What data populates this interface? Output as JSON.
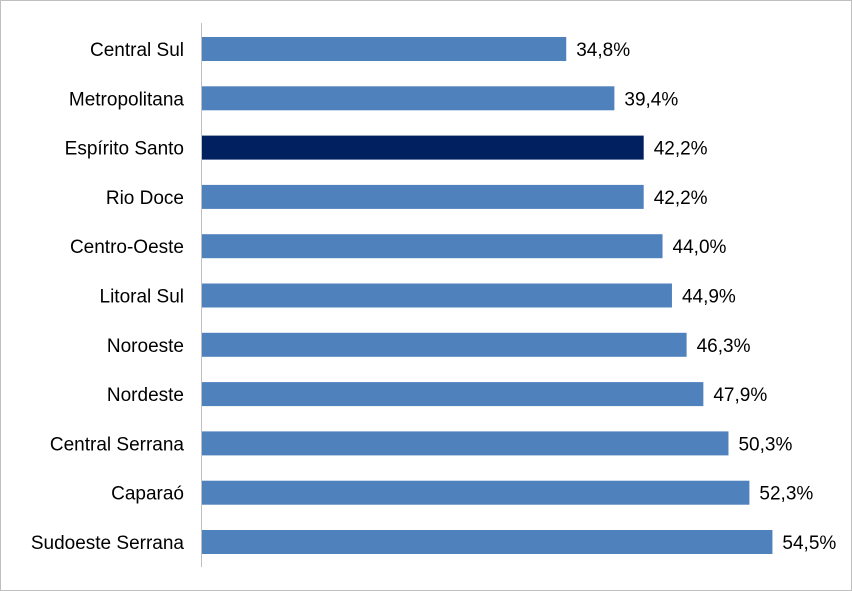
{
  "chart_data": {
    "type": "bar",
    "orientation": "horizontal",
    "categories": [
      "Central Sul",
      "Metropolitana",
      "Espírito Santo",
      "Rio Doce",
      "Centro-Oeste",
      "Litoral Sul",
      "Noroeste",
      "Nordeste",
      "Central Serrana",
      "Caparaó",
      "Sudoeste Serrana"
    ],
    "values": [
      34.8,
      39.4,
      42.2,
      42.2,
      44.0,
      44.9,
      46.3,
      47.9,
      50.3,
      52.3,
      54.5
    ],
    "value_labels": [
      "34,8%",
      "39,4%",
      "42,2%",
      "42,2%",
      "44,0%",
      "44,9%",
      "46,3%",
      "47,9%",
      "50,3%",
      "52,3%",
      "54,5%"
    ],
    "highlight_index": 2,
    "xlim": [
      0,
      60
    ],
    "grid": false,
    "legend": "none",
    "colors": {
      "bar": "#4f81bd",
      "highlight": "#002060",
      "axis": "#bfbfbf",
      "border": "#bfbfbf"
    },
    "title": "",
    "xlabel": "",
    "ylabel": ""
  }
}
